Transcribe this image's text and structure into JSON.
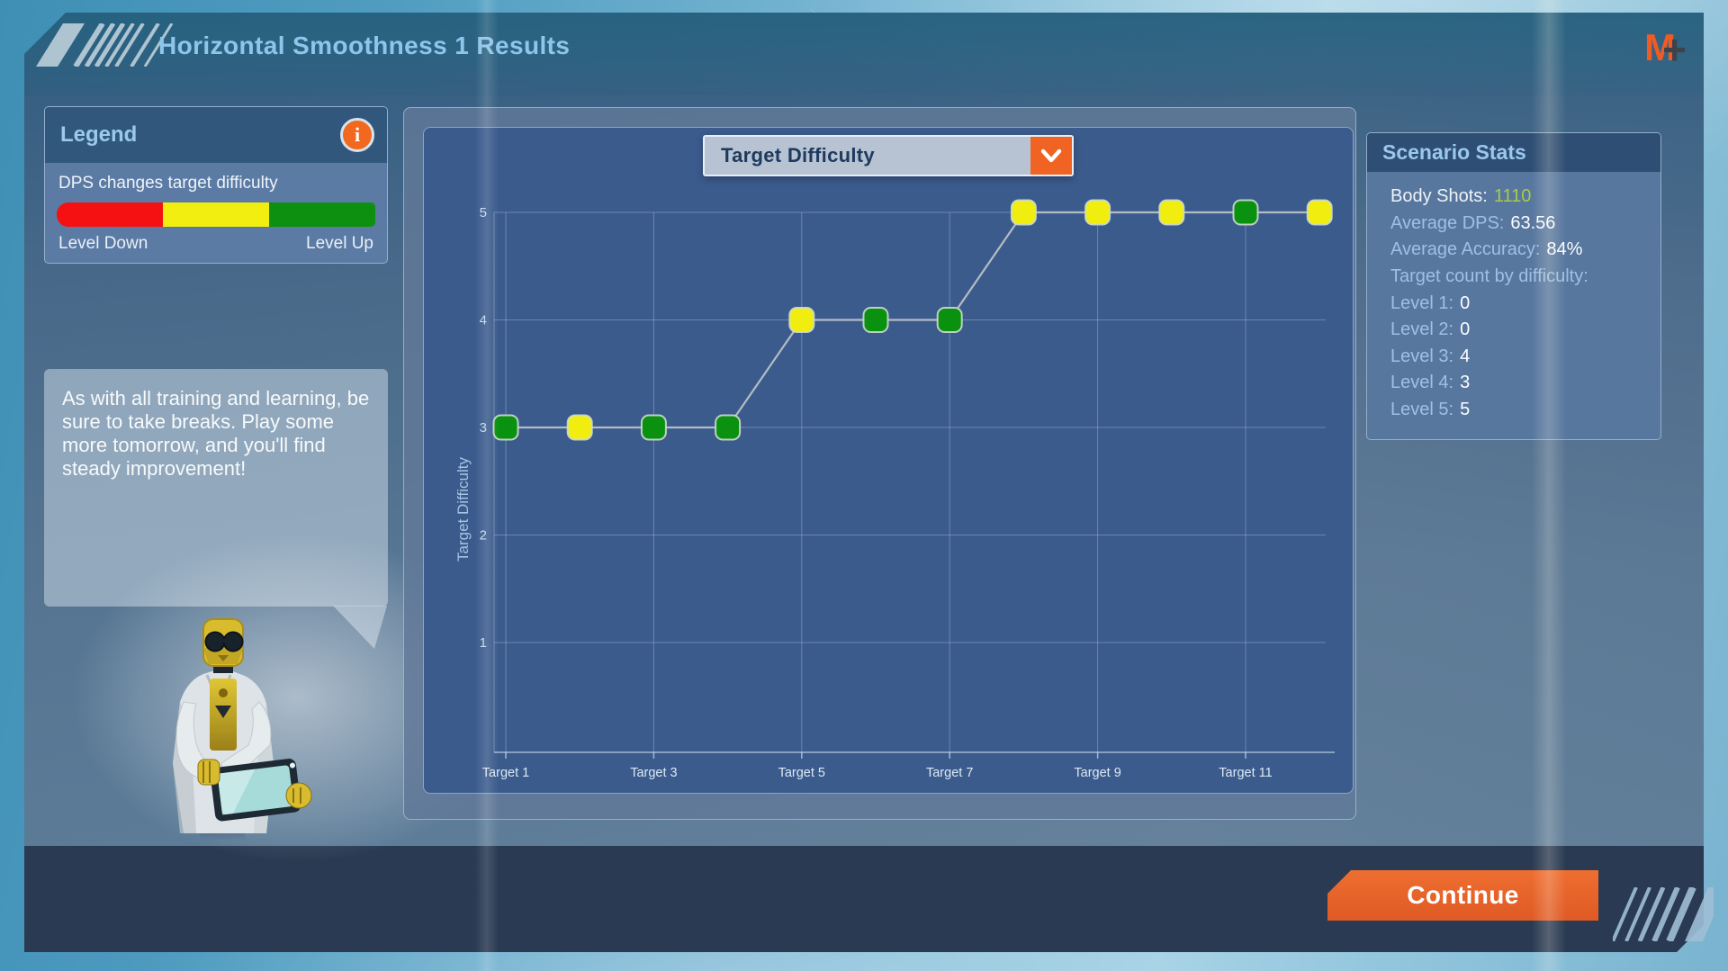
{
  "window": {
    "title": "Horizontal Smoothness 1 Results"
  },
  "logo": {
    "m": "M",
    "plus": "+"
  },
  "legend": {
    "header": "Legend",
    "info_icon": "i",
    "description": "DPS changes target difficulty",
    "left_label": "Level Down",
    "right_label": "Level Up",
    "colors": {
      "down": "#f51011",
      "mid": "#f2ee10",
      "up": "#0d9010"
    }
  },
  "tip": {
    "text": "As with all training and learning, be sure to take breaks. Play some more tomorrow, and you'll find steady improvement!"
  },
  "chart_data": {
    "type": "line",
    "dropdown_label": "Target Difficulty",
    "ylabel": "Target Difficulty",
    "ylim": [
      1,
      5
    ],
    "yticks": [
      1,
      2,
      3,
      4,
      5
    ],
    "x": [
      "Target 1",
      "Target 2",
      "Target 3",
      "Target 4",
      "Target 5",
      "Target 6",
      "Target 7",
      "Target 8",
      "Target 9",
      "Target 10",
      "Target 11",
      "Target 12"
    ],
    "x_ticks_every": 2,
    "values": [
      3,
      3,
      3,
      3,
      4,
      4,
      4,
      5,
      5,
      5,
      5,
      5
    ],
    "point_colors": [
      "green",
      "yellow",
      "green",
      "green",
      "yellow",
      "green",
      "green",
      "yellow",
      "yellow",
      "yellow",
      "green",
      "yellow"
    ],
    "marker_colors": {
      "green": "#0a9110",
      "yellow": "#f1ee0f"
    },
    "line_color": "#b3bcc3",
    "grid": true,
    "legend_position": "none"
  },
  "stats": {
    "header": "Scenario Stats",
    "rows": [
      {
        "label": "Body Shots:",
        "value": "1110",
        "label_style": "bright",
        "value_style": "green"
      },
      {
        "label": "Average DPS:",
        "value": "63.56"
      },
      {
        "label": "Average Accuracy:",
        "value": "84%"
      },
      {
        "label": "Target count by difficulty:",
        "value": ""
      },
      {
        "label": "Level 1:",
        "value": "0"
      },
      {
        "label": "Level 2:",
        "value": "0"
      },
      {
        "label": "Level 3:",
        "value": "4"
      },
      {
        "label": "Level 4:",
        "value": "3"
      },
      {
        "label": "Level 5:",
        "value": "5"
      }
    ]
  },
  "footer": {
    "continue_label": "Continue"
  },
  "ui_colors": {
    "accent_orange": "#f06322",
    "panel_dark": "#3b5b8d",
    "bottom_bar": "#293a52"
  }
}
